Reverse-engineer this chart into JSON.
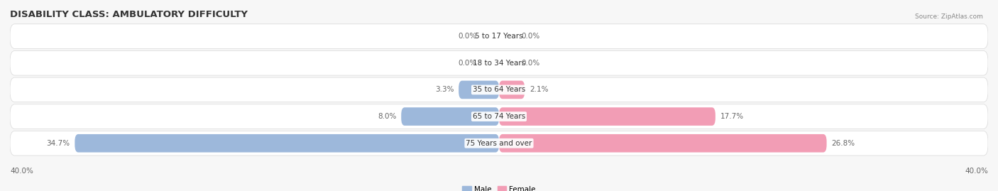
{
  "title": "DISABILITY CLASS: AMBULATORY DIFFICULTY",
  "source": "Source: ZipAtlas.com",
  "categories": [
    "5 to 17 Years",
    "18 to 34 Years",
    "35 to 64 Years",
    "65 to 74 Years",
    "75 Years and over"
  ],
  "male_values": [
    0.0,
    0.0,
    3.3,
    8.0,
    34.7
  ],
  "female_values": [
    0.0,
    0.0,
    2.1,
    17.7,
    26.8
  ],
  "max_val": 40.0,
  "male_color": "#9db8db",
  "female_color": "#f29db5",
  "row_bg_color": "#f0f0f0",
  "row_border_color": "#d8d8d8",
  "fig_bg_color": "#f7f7f7",
  "title_fontsize": 9.5,
  "label_fontsize": 7.5,
  "axis_fontsize": 7.5,
  "legend_fontsize": 7.5,
  "value_label_color": "#666666",
  "category_label_color": "#333333",
  "title_color": "#333333",
  "source_color": "#888888"
}
